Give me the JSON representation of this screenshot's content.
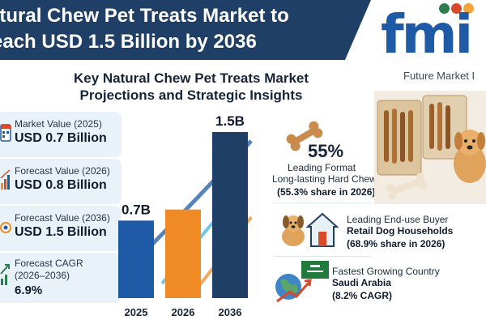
{
  "header": {
    "banner_text": "atural Chew Pet Treats Market to",
    "banner_text_2": "each USD 1.5 Billion by 2036",
    "logo_text": "fmi",
    "logo_tagline": "Future Market I"
  },
  "subtitle": {
    "line1": "Key Natural Chew Pet Treats Market",
    "line2": "Projections and Strategic Insights"
  },
  "stats": [
    {
      "label": "Market Value (2025)",
      "value": "USD 0.7 Billion",
      "icon": "calendar-icon"
    },
    {
      "label": "Forecast Value (2026)",
      "value": "USD 0.8 Billion",
      "icon": "chart-icon"
    },
    {
      "label": "Forecast Value (2036)",
      "value": "USD 1.5 Billion",
      "icon": "globe-gear-icon"
    },
    {
      "label_line1": "Forecast CAGR",
      "label_line2": "(2026–2036)",
      "value": "6.9%",
      "icon": "growth-arrow-icon"
    }
  ],
  "chart_data": {
    "type": "bar",
    "categories": [
      "2025",
      "2026",
      "2036"
    ],
    "values": [
      0.7,
      0.8,
      1.5
    ],
    "value_labels": [
      "0.7B",
      "",
      "1.5B"
    ],
    "title": "",
    "xlabel": "",
    "ylabel": "",
    "ylim": [
      0,
      1.5
    ],
    "colors": [
      "#1f5aa6",
      "#f08a24",
      "#1f3f66"
    ]
  },
  "insights": {
    "format": {
      "pct": "55%",
      "title": "Leading Format",
      "name": "Long-lasting Hard Chews",
      "detail": "(55.3% share in 2026)",
      "icon": "bone-icon"
    },
    "buyer": {
      "title": "Leading End-use Buyer",
      "name": "Retail Dog Households",
      "detail": "(68.9% share in 2026)",
      "icon": "dog-house-icon"
    },
    "country": {
      "title": "Fastest Growing Country",
      "name": "Saudi Arabia",
      "detail": "(8.2% CAGR)",
      "icon": "globe-flag-icon"
    }
  },
  "colors": {
    "navy": "#1f3f66",
    "blue": "#1f5aa6",
    "orange": "#f08a24",
    "card_bg": "#eaf2f9"
  }
}
